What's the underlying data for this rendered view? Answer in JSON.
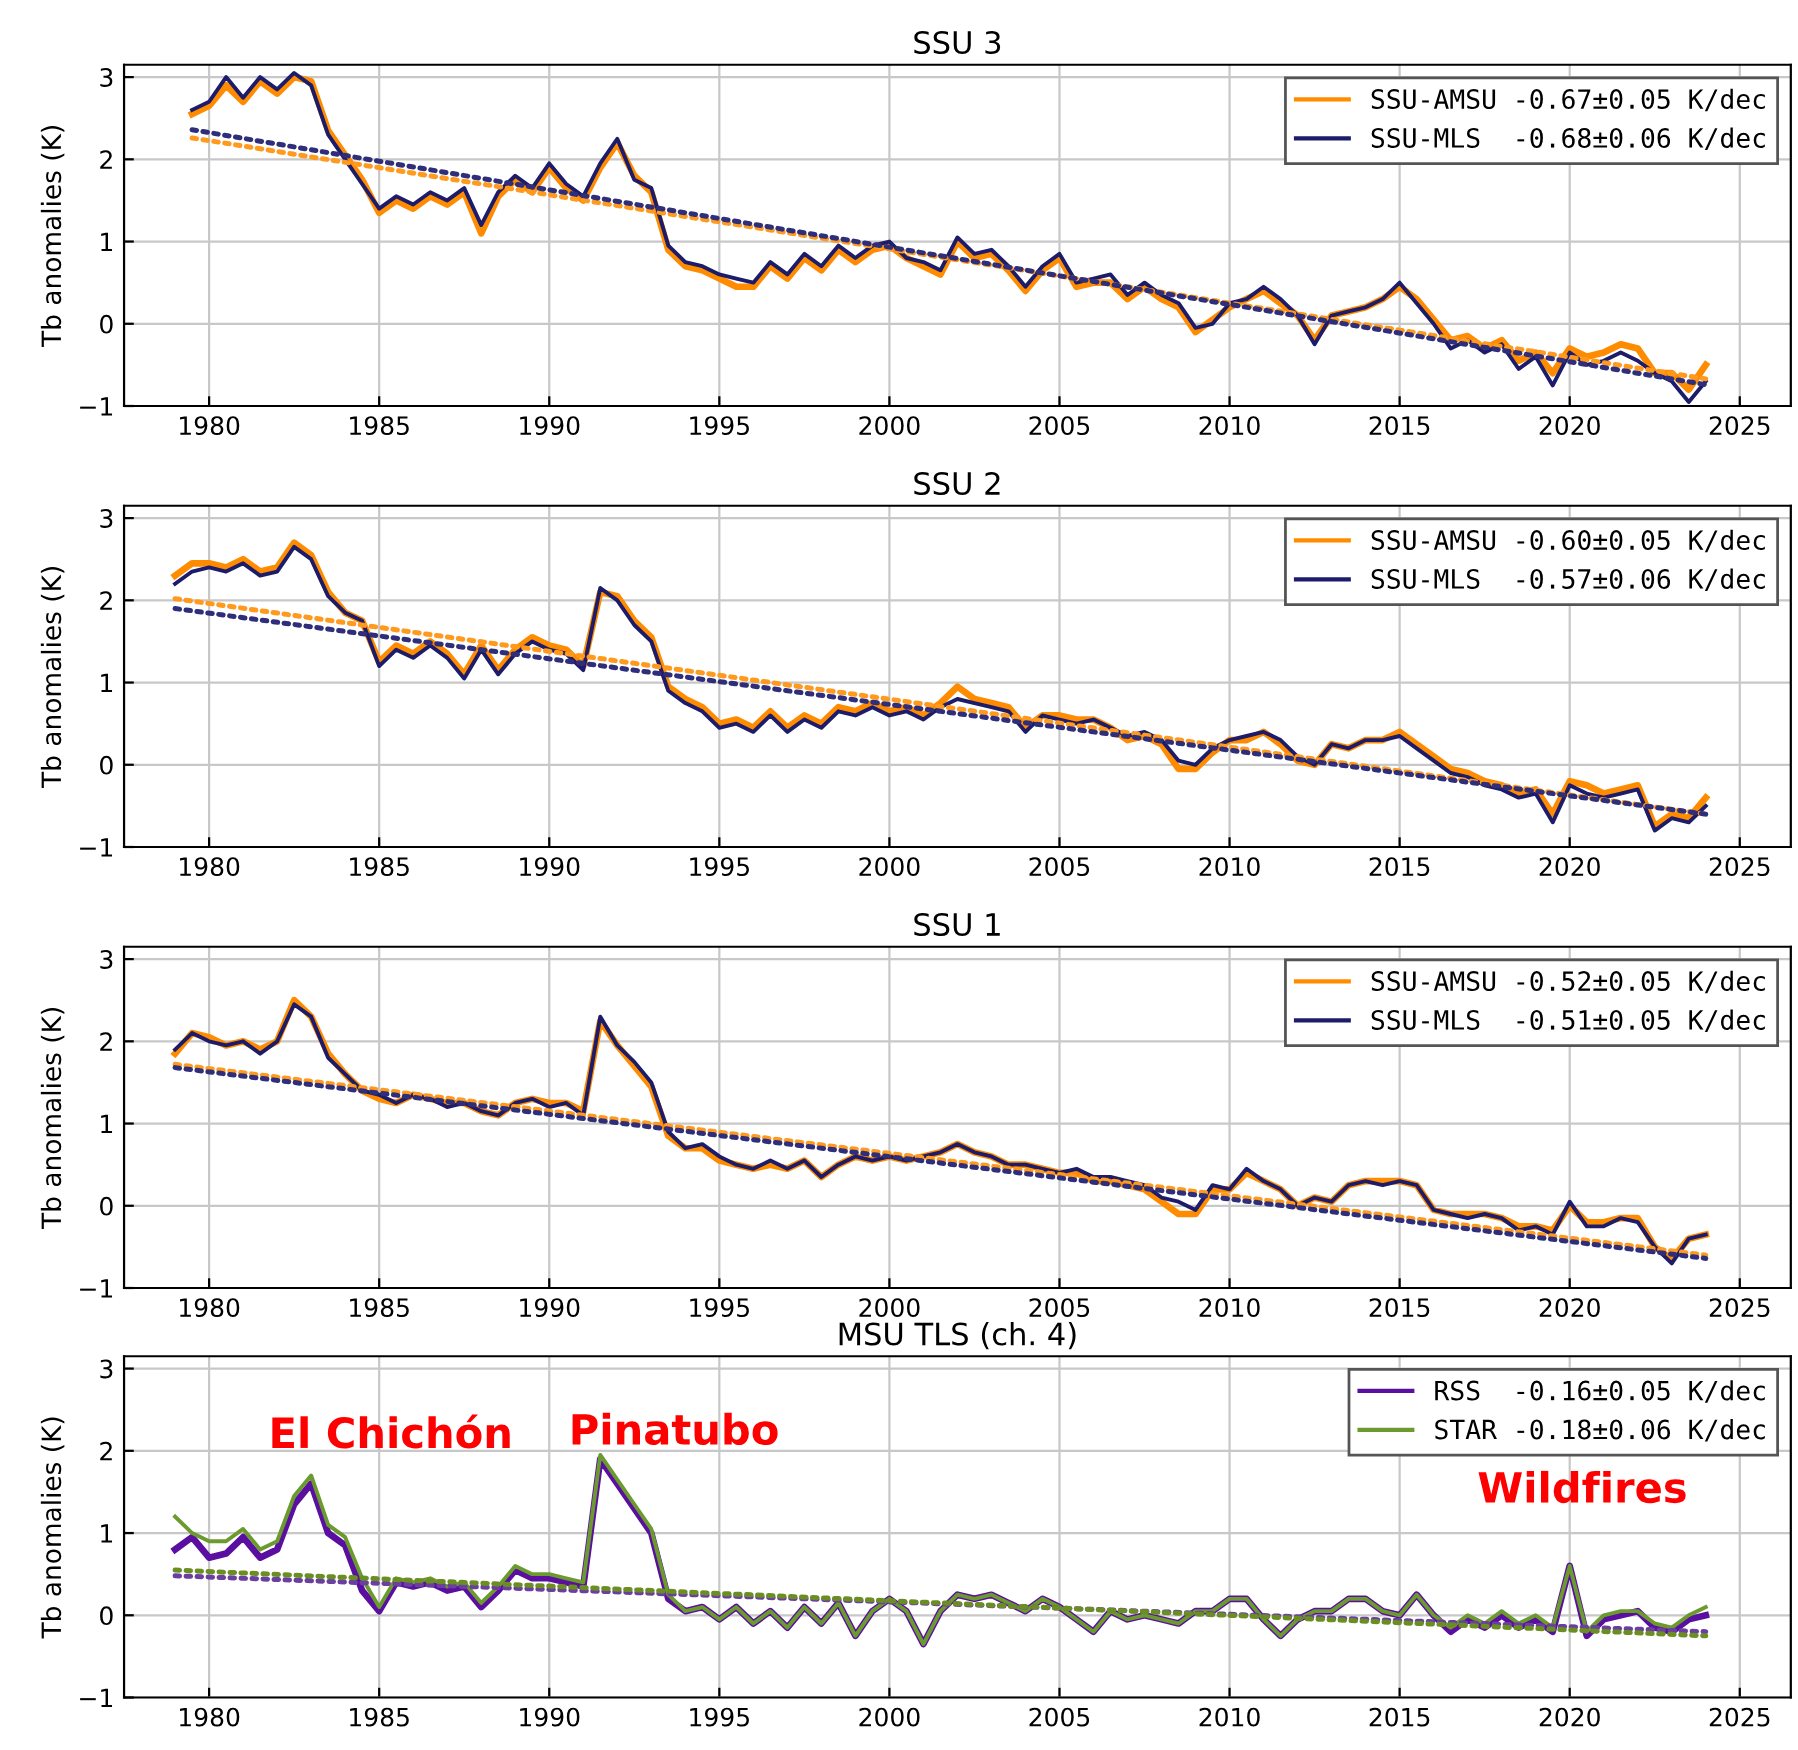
{
  "chart_data": [
    {
      "type": "line",
      "title": "SSU 3",
      "ylabel": "Tb anomalies (K)",
      "xlim": [
        1977.5,
        2026.5
      ],
      "ylim": [
        -1,
        3.15
      ],
      "xticks": [
        1980,
        1985,
        1990,
        1995,
        2000,
        2005,
        2010,
        2015,
        2020,
        2025
      ],
      "yticks": [
        -1,
        0,
        1,
        2,
        3
      ],
      "grid": true,
      "legend": "top right",
      "x": [
        1979.5,
        1980.0,
        1980.5,
        1981.0,
        1981.5,
        1982.0,
        1982.5,
        1983.0,
        1983.5,
        1984.0,
        1984.5,
        1985.0,
        1985.5,
        1986.0,
        1986.5,
        1987.0,
        1987.5,
        1988.0,
        1988.5,
        1989.0,
        1989.5,
        1990.0,
        1990.5,
        1991.0,
        1991.5,
        1992.0,
        1992.5,
        1993.0,
        1993.5,
        1994.0,
        1994.5,
        1995.0,
        1995.5,
        1996.0,
        1996.5,
        1997.0,
        1997.5,
        1998.0,
        1998.5,
        1999.0,
        1999.5,
        2000.0,
        2000.5,
        2001.0,
        2001.5,
        2002.0,
        2002.5,
        2003.0,
        2003.5,
        2004.0,
        2004.5,
        2005.0,
        2005.5,
        2006.0,
        2006.5,
        2007.0,
        2007.5,
        2008.0,
        2008.5,
        2009.0,
        2009.5,
        2010.0,
        2010.5,
        2011.0,
        2011.5,
        2012.0,
        2012.5,
        2013.0,
        2013.5,
        2014.0,
        2014.5,
        2015.0,
        2015.5,
        2016.0,
        2016.5,
        2017.0,
        2017.5,
        2018.0,
        2018.5,
        2019.0,
        2019.5,
        2020.0,
        2020.5,
        2021.0,
        2021.5,
        2022.0,
        2022.5,
        2023.0,
        2023.5,
        2024.0
      ],
      "series": [
        {
          "name": "SSU-AMSU -0.67±0.05 K/dec",
          "color": "#ff8c00",
          "values": [
            2.55,
            2.65,
            2.9,
            2.7,
            2.95,
            2.8,
            3.0,
            2.95,
            2.35,
            2.05,
            1.75,
            1.35,
            1.5,
            1.4,
            1.55,
            1.45,
            1.6,
            1.1,
            1.55,
            1.75,
            1.6,
            1.9,
            1.65,
            1.5,
            1.9,
            2.2,
            1.8,
            1.6,
            0.9,
            0.7,
            0.65,
            0.55,
            0.45,
            0.45,
            0.7,
            0.55,
            0.8,
            0.65,
            0.9,
            0.75,
            0.9,
            0.95,
            0.8,
            0.7,
            0.6,
            1.0,
            0.8,
            0.85,
            0.65,
            0.4,
            0.65,
            0.8,
            0.45,
            0.5,
            0.5,
            0.3,
            0.45,
            0.3,
            0.2,
            -0.1,
            0.05,
            0.2,
            0.3,
            0.4,
            0.25,
            0.1,
            -0.2,
            0.1,
            0.15,
            0.2,
            0.3,
            0.45,
            0.3,
            0.05,
            -0.2,
            -0.15,
            -0.3,
            -0.2,
            -0.45,
            -0.35,
            -0.6,
            -0.3,
            -0.4,
            -0.35,
            -0.25,
            -0.3,
            -0.6,
            -0.6,
            -0.8,
            -0.5
          ]
        },
        {
          "name": "SSU-MLS  -0.68±0.06 K/dec",
          "color": "#1c1c6b",
          "values": [
            2.6,
            2.7,
            3.0,
            2.75,
            3.0,
            2.85,
            3.05,
            2.9,
            2.3,
            2.0,
            1.7,
            1.4,
            1.55,
            1.45,
            1.6,
            1.5,
            1.65,
            1.2,
            1.6,
            1.8,
            1.65,
            1.95,
            1.7,
            1.55,
            1.95,
            2.25,
            1.75,
            1.65,
            0.95,
            0.75,
            0.7,
            0.6,
            0.55,
            0.5,
            0.75,
            0.6,
            0.85,
            0.7,
            0.95,
            0.8,
            0.95,
            1.0,
            0.8,
            0.75,
            0.65,
            1.05,
            0.85,
            0.9,
            0.7,
            0.45,
            0.7,
            0.85,
            0.5,
            0.55,
            0.6,
            0.35,
            0.5,
            0.35,
            0.25,
            -0.05,
            0.0,
            0.25,
            0.3,
            0.45,
            0.3,
            0.1,
            -0.25,
            0.1,
            0.15,
            0.2,
            0.3,
            0.5,
            0.25,
            0.0,
            -0.3,
            -0.2,
            -0.35,
            -0.25,
            -0.55,
            -0.4,
            -0.75,
            -0.35,
            -0.5,
            -0.45,
            -0.35,
            -0.45,
            -0.6,
            -0.7,
            -0.95,
            -0.7
          ]
        },
        {
          "type": "line",
          "line_style": "dotted",
          "color": "#ff9a1e",
          "x": [
            1979.5,
            2024.0
          ],
          "values": [
            2.26,
            -0.67
          ]
        },
        {
          "type": "line",
          "line_style": "dotted",
          "color": "#2e2e7a",
          "x": [
            1979.5,
            2024.0
          ],
          "values": [
            2.36,
            -0.74
          ]
        }
      ]
    },
    {
      "type": "line",
      "title": "SSU 2",
      "ylabel": "Tb anomalies (K)",
      "xlim": [
        1977.5,
        2026.5
      ],
      "ylim": [
        -1,
        3.15
      ],
      "xticks": [
        1980,
        1985,
        1990,
        1995,
        2000,
        2005,
        2010,
        2015,
        2020,
        2025
      ],
      "yticks": [
        -1,
        0,
        1,
        2,
        3
      ],
      "grid": true,
      "legend": "top right",
      "x": [
        1979.0,
        1979.5,
        1980.0,
        1980.5,
        1981.0,
        1981.5,
        1982.0,
        1982.5,
        1983.0,
        1983.5,
        1984.0,
        1984.5,
        1985.0,
        1985.5,
        1986.0,
        1986.5,
        1987.0,
        1987.5,
        1988.0,
        1988.5,
        1989.0,
        1989.5,
        1990.0,
        1990.5,
        1991.0,
        1991.5,
        1992.0,
        1992.5,
        1993.0,
        1993.5,
        1994.0,
        1994.5,
        1995.0,
        1995.5,
        1996.0,
        1996.5,
        1997.0,
        1997.5,
        1998.0,
        1998.5,
        1999.0,
        1999.5,
        2000.0,
        2000.5,
        2001.0,
        2001.5,
        2002.0,
        2002.5,
        2003.0,
        2003.5,
        2004.0,
        2004.5,
        2005.0,
        2005.5,
        2006.0,
        2006.5,
        2007.0,
        2007.5,
        2008.0,
        2008.5,
        2009.0,
        2009.5,
        2010.0,
        2010.5,
        2011.0,
        2011.5,
        2012.0,
        2012.5,
        2013.0,
        2013.5,
        2014.0,
        2014.5,
        2015.0,
        2015.5,
        2016.0,
        2016.5,
        2017.0,
        2017.5,
        2018.0,
        2018.5,
        2019.0,
        2019.5,
        2020.0,
        2020.5,
        2021.0,
        2021.5,
        2022.0,
        2022.5,
        2023.0,
        2023.5,
        2024.0
      ],
      "series": [
        {
          "name": "SSU-AMSU -0.60±0.05 K/dec",
          "color": "#ff8c00",
          "values": [
            2.3,
            2.45,
            2.45,
            2.4,
            2.5,
            2.35,
            2.4,
            2.7,
            2.55,
            2.1,
            1.85,
            1.75,
            1.25,
            1.45,
            1.35,
            1.5,
            1.35,
            1.1,
            1.45,
            1.15,
            1.4,
            1.55,
            1.45,
            1.4,
            1.2,
            2.1,
            2.05,
            1.75,
            1.55,
            0.95,
            0.8,
            0.7,
            0.5,
            0.55,
            0.45,
            0.65,
            0.45,
            0.6,
            0.5,
            0.7,
            0.65,
            0.75,
            0.65,
            0.7,
            0.6,
            0.75,
            0.95,
            0.8,
            0.75,
            0.7,
            0.45,
            0.6,
            0.6,
            0.55,
            0.55,
            0.45,
            0.3,
            0.35,
            0.25,
            -0.05,
            -0.05,
            0.15,
            0.3,
            0.3,
            0.4,
            0.25,
            0.05,
            0.0,
            0.25,
            0.2,
            0.3,
            0.3,
            0.4,
            0.25,
            0.1,
            -0.05,
            -0.1,
            -0.2,
            -0.25,
            -0.35,
            -0.3,
            -0.6,
            -0.2,
            -0.25,
            -0.35,
            -0.3,
            -0.25,
            -0.75,
            -0.6,
            -0.65,
            -0.4
          ]
        },
        {
          "name": "SSU-MLS  -0.57±0.06 K/dec",
          "color": "#1c1c6b",
          "values": [
            2.2,
            2.35,
            2.4,
            2.35,
            2.45,
            2.3,
            2.35,
            2.65,
            2.5,
            2.05,
            1.85,
            1.75,
            1.2,
            1.4,
            1.3,
            1.45,
            1.3,
            1.05,
            1.4,
            1.1,
            1.35,
            1.5,
            1.4,
            1.35,
            1.15,
            2.15,
            2.0,
            1.7,
            1.5,
            0.9,
            0.75,
            0.65,
            0.45,
            0.5,
            0.4,
            0.6,
            0.4,
            0.55,
            0.45,
            0.65,
            0.6,
            0.7,
            0.6,
            0.65,
            0.55,
            0.7,
            0.8,
            0.75,
            0.7,
            0.65,
            0.4,
            0.6,
            0.55,
            0.5,
            0.55,
            0.45,
            0.35,
            0.4,
            0.3,
            0.05,
            0.0,
            0.2,
            0.3,
            0.35,
            0.4,
            0.3,
            0.1,
            0.0,
            0.25,
            0.2,
            0.3,
            0.3,
            0.35,
            0.2,
            0.05,
            -0.1,
            -0.15,
            -0.25,
            -0.3,
            -0.4,
            -0.35,
            -0.7,
            -0.25,
            -0.35,
            -0.4,
            -0.35,
            -0.3,
            -0.8,
            -0.65,
            -0.7,
            -0.5
          ]
        },
        {
          "type": "line",
          "line_style": "dotted",
          "color": "#ff9a1e",
          "x": [
            1979.0,
            2024.0
          ],
          "values": [
            2.02,
            -0.6
          ]
        },
        {
          "type": "line",
          "line_style": "dotted",
          "color": "#2e2e7a",
          "x": [
            1979.0,
            2024.0
          ],
          "values": [
            1.9,
            -0.6
          ]
        }
      ]
    },
    {
      "type": "line",
      "title": "SSU 1",
      "ylabel": "Tb anomalies (K)",
      "xlim": [
        1977.5,
        2026.5
      ],
      "ylim": [
        -1,
        3.15
      ],
      "xticks": [
        1980,
        1985,
        1990,
        1995,
        2000,
        2005,
        2010,
        2015,
        2020,
        2025
      ],
      "yticks": [
        -1,
        0,
        1,
        2,
        3
      ],
      "grid": true,
      "legend": "top right",
      "x": [
        1979.0,
        1979.5,
        1980.0,
        1980.5,
        1981.0,
        1981.5,
        1982.0,
        1982.5,
        1983.0,
        1983.5,
        1984.0,
        1984.5,
        1985.0,
        1985.5,
        1986.0,
        1986.5,
        1987.0,
        1987.5,
        1988.0,
        1988.5,
        1989.0,
        1989.5,
        1990.0,
        1990.5,
        1991.0,
        1991.5,
        1992.0,
        1992.5,
        1993.0,
        1993.5,
        1994.0,
        1994.5,
        1995.0,
        1995.5,
        1996.0,
        1996.5,
        1997.0,
        1997.5,
        1998.0,
        1998.5,
        1999.0,
        1999.5,
        2000.0,
        2000.5,
        2001.0,
        2001.5,
        2002.0,
        2002.5,
        2003.0,
        2003.5,
        2004.0,
        2004.5,
        2005.0,
        2005.5,
        2006.0,
        2006.5,
        2007.0,
        2007.5,
        2008.0,
        2008.5,
        2009.0,
        2009.5,
        2010.0,
        2010.5,
        2011.0,
        2011.5,
        2012.0,
        2012.5,
        2013.0,
        2013.5,
        2014.0,
        2014.5,
        2015.0,
        2015.5,
        2016.0,
        2016.5,
        2017.0,
        2017.5,
        2018.0,
        2018.5,
        2019.0,
        2019.5,
        2020.0,
        2020.5,
        2021.0,
        2021.5,
        2022.0,
        2022.5,
        2023.0,
        2023.5,
        2024.0
      ],
      "series": [
        {
          "name": "SSU-AMSU -0.52±0.05 K/dec",
          "color": "#ff8c00",
          "values": [
            1.85,
            2.1,
            2.05,
            1.95,
            2.0,
            1.9,
            2.0,
            2.5,
            2.3,
            1.85,
            1.6,
            1.4,
            1.3,
            1.25,
            1.35,
            1.3,
            1.25,
            1.25,
            1.15,
            1.1,
            1.25,
            1.3,
            1.25,
            1.25,
            1.15,
            2.25,
            1.95,
            1.7,
            1.45,
            0.85,
            0.7,
            0.7,
            0.55,
            0.5,
            0.45,
            0.5,
            0.45,
            0.55,
            0.35,
            0.5,
            0.6,
            0.55,
            0.6,
            0.55,
            0.6,
            0.65,
            0.75,
            0.65,
            0.6,
            0.5,
            0.5,
            0.45,
            0.4,
            0.4,
            0.3,
            0.3,
            0.25,
            0.2,
            0.05,
            -0.1,
            -0.1,
            0.2,
            0.2,
            0.4,
            0.3,
            0.2,
            0.0,
            0.1,
            0.05,
            0.25,
            0.3,
            0.3,
            0.3,
            0.25,
            -0.05,
            -0.1,
            -0.1,
            -0.1,
            -0.15,
            -0.25,
            -0.25,
            -0.3,
            0.0,
            -0.2,
            -0.2,
            -0.15,
            -0.15,
            -0.5,
            -0.65,
            -0.4,
            -0.35
          ]
        },
        {
          "name": "SSU-MLS  -0.51±0.05 K/dec",
          "color": "#1c1c6b",
          "values": [
            1.9,
            2.1,
            2.0,
            1.95,
            2.0,
            1.85,
            2.0,
            2.45,
            2.3,
            1.8,
            1.6,
            1.4,
            1.35,
            1.25,
            1.35,
            1.3,
            1.2,
            1.25,
            1.15,
            1.1,
            1.25,
            1.3,
            1.2,
            1.25,
            1.1,
            2.3,
            1.95,
            1.75,
            1.5,
            0.9,
            0.7,
            0.75,
            0.6,
            0.5,
            0.45,
            0.55,
            0.45,
            0.55,
            0.35,
            0.5,
            0.6,
            0.55,
            0.6,
            0.55,
            0.6,
            0.65,
            0.75,
            0.65,
            0.6,
            0.5,
            0.5,
            0.45,
            0.4,
            0.45,
            0.35,
            0.35,
            0.3,
            0.25,
            0.1,
            0.05,
            -0.05,
            0.25,
            0.2,
            0.45,
            0.3,
            0.2,
            0.0,
            0.1,
            0.05,
            0.25,
            0.3,
            0.25,
            0.3,
            0.25,
            -0.05,
            -0.1,
            -0.15,
            -0.1,
            -0.15,
            -0.3,
            -0.25,
            -0.35,
            0.05,
            -0.25,
            -0.25,
            -0.15,
            -0.2,
            -0.5,
            -0.7,
            -0.4,
            -0.35
          ]
        },
        {
          "type": "line",
          "line_style": "dotted",
          "color": "#ff9a1e",
          "x": [
            1979.0,
            2024.0
          ],
          "values": [
            1.72,
            -0.6
          ]
        },
        {
          "type": "line",
          "line_style": "dotted",
          "color": "#2e2e7a",
          "x": [
            1979.0,
            2024.0
          ],
          "values": [
            1.68,
            -0.64
          ]
        }
      ]
    },
    {
      "type": "line",
      "title": "MSU TLS (ch. 4)",
      "ylabel": "Tb anomalies (K)",
      "xlim": [
        1977.5,
        2026.5
      ],
      "ylim": [
        -1,
        3.15
      ],
      "xticks": [
        1980,
        1985,
        1990,
        1995,
        2000,
        2005,
        2010,
        2015,
        2020,
        2025
      ],
      "yticks": [
        -1,
        0,
        1,
        2,
        3
      ],
      "grid": true,
      "legend": "top right",
      "annotations": [
        "El Chichón",
        "Pinatubo",
        "Wildfires"
      ],
      "x": [
        1979.0,
        1979.5,
        1980.0,
        1980.5,
        1981.0,
        1981.5,
        1982.0,
        1982.5,
        1983.0,
        1983.5,
        1984.0,
        1984.5,
        1985.0,
        1985.5,
        1986.0,
        1986.5,
        1987.0,
        1987.5,
        1988.0,
        1988.5,
        1989.0,
        1989.5,
        1990.0,
        1990.5,
        1991.0,
        1991.5,
        1992.0,
        1992.5,
        1993.0,
        1993.5,
        1994.0,
        1994.5,
        1995.0,
        1995.5,
        1996.0,
        1996.5,
        1997.0,
        1997.5,
        1998.0,
        1998.5,
        1999.0,
        1999.5,
        2000.0,
        2000.5,
        2001.0,
        2001.5,
        2002.0,
        2002.5,
        2003.0,
        2003.5,
        2004.0,
        2004.5,
        2005.0,
        2005.5,
        2006.0,
        2006.5,
        2007.0,
        2007.5,
        2008.0,
        2008.5,
        2009.0,
        2009.5,
        2010.0,
        2010.5,
        2011.0,
        2011.5,
        2012.0,
        2012.5,
        2013.0,
        2013.5,
        2014.0,
        2014.5,
        2015.0,
        2015.5,
        2016.0,
        2016.5,
        2017.0,
        2017.5,
        2018.0,
        2018.5,
        2019.0,
        2019.5,
        2020.0,
        2020.5,
        2021.0,
        2021.5,
        2022.0,
        2022.5,
        2023.0,
        2023.5,
        2024.0
      ],
      "series": [
        {
          "name": "RSS  -0.16±0.05 K/dec",
          "color": "#5a0fa0",
          "values": [
            0.8,
            0.95,
            0.7,
            0.75,
            0.95,
            0.7,
            0.8,
            1.35,
            1.6,
            1.0,
            0.85,
            0.3,
            0.05,
            0.4,
            0.35,
            0.4,
            0.3,
            0.35,
            0.1,
            0.3,
            0.55,
            0.45,
            0.45,
            0.4,
            0.35,
            1.9,
            1.6,
            1.3,
            1.0,
            0.2,
            0.05,
            0.1,
            -0.05,
            0.1,
            -0.1,
            0.05,
            -0.15,
            0.1,
            -0.1,
            0.15,
            -0.25,
            0.05,
            0.2,
            0.05,
            -0.35,
            0.05,
            0.25,
            0.2,
            0.25,
            0.15,
            0.05,
            0.2,
            0.1,
            -0.05,
            -0.2,
            0.05,
            -0.05,
            0.0,
            -0.05,
            -0.1,
            0.05,
            0.05,
            0.2,
            0.2,
            -0.05,
            -0.25,
            -0.05,
            0.05,
            0.05,
            0.2,
            0.2,
            0.05,
            0.0,
            0.25,
            0.0,
            -0.2,
            -0.05,
            -0.15,
            0.0,
            -0.15,
            -0.05,
            -0.2,
            0.6,
            -0.25,
            -0.05,
            0.0,
            0.05,
            -0.15,
            -0.2,
            -0.05,
            0.0
          ]
        },
        {
          "name": "STAR -0.18±0.06 K/dec",
          "color": "#6b9a2e",
          "values": [
            1.2,
            1.0,
            0.9,
            0.9,
            1.05,
            0.8,
            0.9,
            1.45,
            1.7,
            1.1,
            0.95,
            0.45,
            0.1,
            0.45,
            0.4,
            0.45,
            0.35,
            0.4,
            0.15,
            0.35,
            0.6,
            0.5,
            0.5,
            0.45,
            0.4,
            1.95,
            1.65,
            1.35,
            1.05,
            0.25,
            0.05,
            0.1,
            -0.05,
            0.1,
            -0.1,
            0.05,
            -0.15,
            0.1,
            -0.1,
            0.15,
            -0.25,
            0.05,
            0.2,
            0.05,
            -0.35,
            0.05,
            0.25,
            0.2,
            0.25,
            0.15,
            0.05,
            0.2,
            0.1,
            -0.05,
            -0.2,
            0.05,
            -0.05,
            0.0,
            -0.05,
            -0.1,
            0.05,
            0.05,
            0.2,
            0.2,
            -0.05,
            -0.25,
            -0.05,
            0.05,
            0.05,
            0.2,
            0.2,
            0.05,
            0.0,
            0.25,
            0.0,
            -0.15,
            0.0,
            -0.1,
            0.05,
            -0.1,
            0.0,
            -0.15,
            0.6,
            -0.2,
            0.0,
            0.05,
            0.05,
            -0.1,
            -0.15,
            0.0,
            0.1
          ]
        },
        {
          "type": "line",
          "line_style": "dotted",
          "color": "#6a3fa0",
          "x": [
            1979.0,
            2024.0
          ],
          "values": [
            0.48,
            -0.2
          ]
        },
        {
          "type": "line",
          "line_style": "dotted",
          "color": "#6b8e23",
          "x": [
            1979.0,
            2024.0
          ],
          "values": [
            0.55,
            -0.25
          ]
        }
      ]
    }
  ]
}
